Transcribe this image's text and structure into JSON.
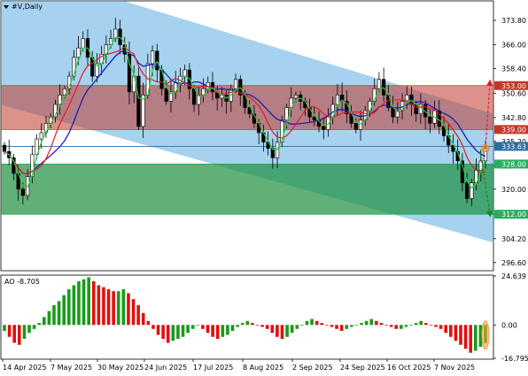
{
  "header": {
    "symbol_label": "#V,Daily",
    "menu_icon": "triangle-down-icon"
  },
  "ao_panel": {
    "label": "AO -8.705"
  },
  "colors": {
    "channel": "#5dade2",
    "sell_zone": "#c0392b",
    "buy_zone": "#27ae60",
    "ma_fast": "#2ecc40",
    "ma_mid": "#e02020",
    "ma_slow": "#1f1fb4",
    "ao_up": "#1a9a1a",
    "ao_down": "#e01010"
  },
  "chart_data": [
    {
      "type": "candlestick",
      "title": "#V,Daily",
      "price_axis_ticks": [
        "373.80",
        "366.00",
        "358.40",
        "350.60",
        "342.80",
        "335.20",
        "327.40",
        "320.00",
        "312.00",
        "304.20",
        "296.60"
      ],
      "price_range": [
        294,
        380
      ],
      "highlighted_levels": [
        {
          "label": "353.00",
          "color": "#c0392b"
        },
        {
          "label": "339.00",
          "color": "#c0392b"
        },
        {
          "label": "333.63",
          "color": "#2e6da4"
        },
        {
          "label": "328.00",
          "color": "#27ae60"
        },
        {
          "label": "312.00",
          "color": "#27ae60"
        }
      ],
      "zones": [
        {
          "name": "sell zone",
          "from": 339,
          "to": 353
        },
        {
          "name": "buy zone",
          "from": 312,
          "to": 328
        }
      ],
      "date_ticks": [
        "14 Apr 2025",
        "7 May 2025",
        "30 May 2025",
        "24 Jun 2025",
        "17 Jul 2025",
        "8 Aug 2025",
        "2 Sep 2025",
        "24 Sep 2025",
        "16 Oct 2025",
        "7 Nov 2025"
      ],
      "closes": [
        332,
        330,
        325,
        320,
        318,
        324,
        331,
        336,
        338,
        341,
        343,
        347,
        350,
        352,
        356,
        362,
        365,
        368,
        362,
        356,
        360,
        363,
        366,
        368,
        371,
        366,
        363,
        351,
        356,
        340,
        350,
        360,
        364,
        358,
        352,
        348,
        351,
        354,
        356,
        358,
        352,
        347,
        350,
        352,
        354,
        351,
        349,
        350,
        348,
        352,
        355,
        350,
        346,
        344,
        341,
        338,
        335,
        333,
        330,
        335,
        342,
        346,
        349,
        350,
        348,
        346,
        343,
        342,
        340,
        339,
        343,
        347,
        350,
        348,
        344,
        341,
        339,
        342,
        345,
        348,
        352,
        355,
        350,
        346,
        343,
        345,
        348,
        350,
        347,
        344,
        347,
        343,
        341,
        345,
        340,
        337,
        334,
        332,
        329,
        322,
        317,
        322,
        326,
        329,
        333
      ]
    },
    {
      "type": "bar",
      "title": "AO -8.705",
      "axis_ticks": [
        "24.639",
        "0.00",
        "-16.795"
      ],
      "range": [
        -16.795,
        24.639
      ],
      "values": [
        -3,
        -6,
        -9,
        -10,
        -7,
        -4,
        -2,
        1,
        4,
        7,
        10,
        12,
        15,
        18,
        20,
        22,
        23,
        24,
        22,
        20,
        19,
        18,
        17,
        17,
        18,
        16,
        13,
        10,
        6,
        2,
        -2,
        -5,
        -7,
        -9,
        -8,
        -7,
        -6,
        -4,
        -2,
        0,
        -2,
        -4,
        -6,
        -7,
        -6,
        -5,
        -3,
        -1,
        1,
        2,
        1,
        0,
        -1,
        -2,
        -4,
        -6,
        -7,
        -6,
        -4,
        -2,
        0,
        2,
        3,
        2,
        1,
        0,
        -1,
        -2,
        -3,
        -2,
        -1,
        0,
        1,
        2,
        3,
        2,
        1,
        0,
        -1,
        -2,
        -2,
        -1,
        0,
        1,
        2,
        1,
        0,
        -1,
        -2,
        -4,
        -6,
        -8,
        -10,
        -12,
        -14,
        -13,
        -11,
        -9
      ]
    }
  ]
}
